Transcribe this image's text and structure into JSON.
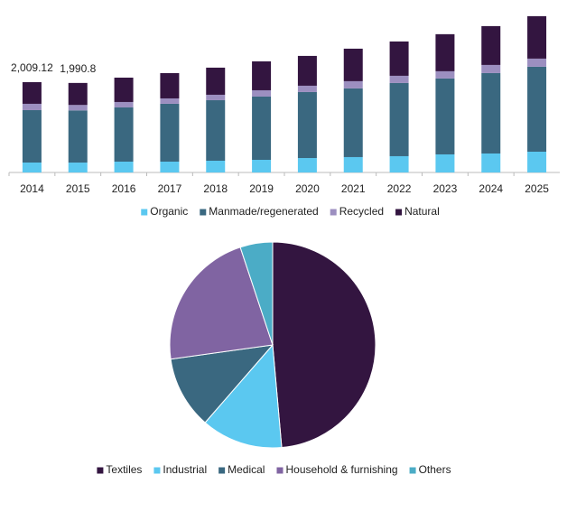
{
  "chart_data": [
    {
      "type": "bar",
      "categories": [
        "2014",
        "2015",
        "2016",
        "2017",
        "2018",
        "2019",
        "2020",
        "2021",
        "2022",
        "2023",
        "2024",
        "2025"
      ],
      "series": [
        {
          "name": "Organic",
          "color": "#5bc8f0",
          "values": [
            221,
            220,
            241,
            241,
            261,
            281,
            321,
            342,
            362,
            402,
            422,
            462
          ]
        },
        {
          "name": "Manmade/regenerated",
          "color": "#3a6880",
          "values": [
            1165,
            1160,
            1205,
            1286,
            1346,
            1406,
            1467,
            1527,
            1627,
            1688,
            1788,
            1889
          ]
        },
        {
          "name": "Recycled",
          "color": "#9c8fc0",
          "values": [
            141,
            121,
            121,
            120,
            121,
            141,
            141,
            161,
            161,
            161,
            181,
            181
          ]
        },
        {
          "name": "Natural",
          "color": "#331540",
          "values": [
            482,
            489.8,
            542,
            563,
            603,
            643,
            663,
            723,
            763,
            824,
            864,
            944
          ]
        }
      ],
      "totals": [
        2009.12,
        1990.8
      ],
      "total_labels": [
        "2,009.12",
        "1,990.8"
      ]
    },
    {
      "type": "pie",
      "categories": [
        "Textiles",
        "Industrial",
        "Medical",
        "Household & furnishing",
        "Others"
      ],
      "values": [
        48.6,
        12.8,
        11.4,
        22.1,
        5.1
      ],
      "colors": [
        "#331540",
        "#5bc8f0",
        "#3a6880",
        "#8064a2",
        "#4bacc6"
      ]
    }
  ]
}
